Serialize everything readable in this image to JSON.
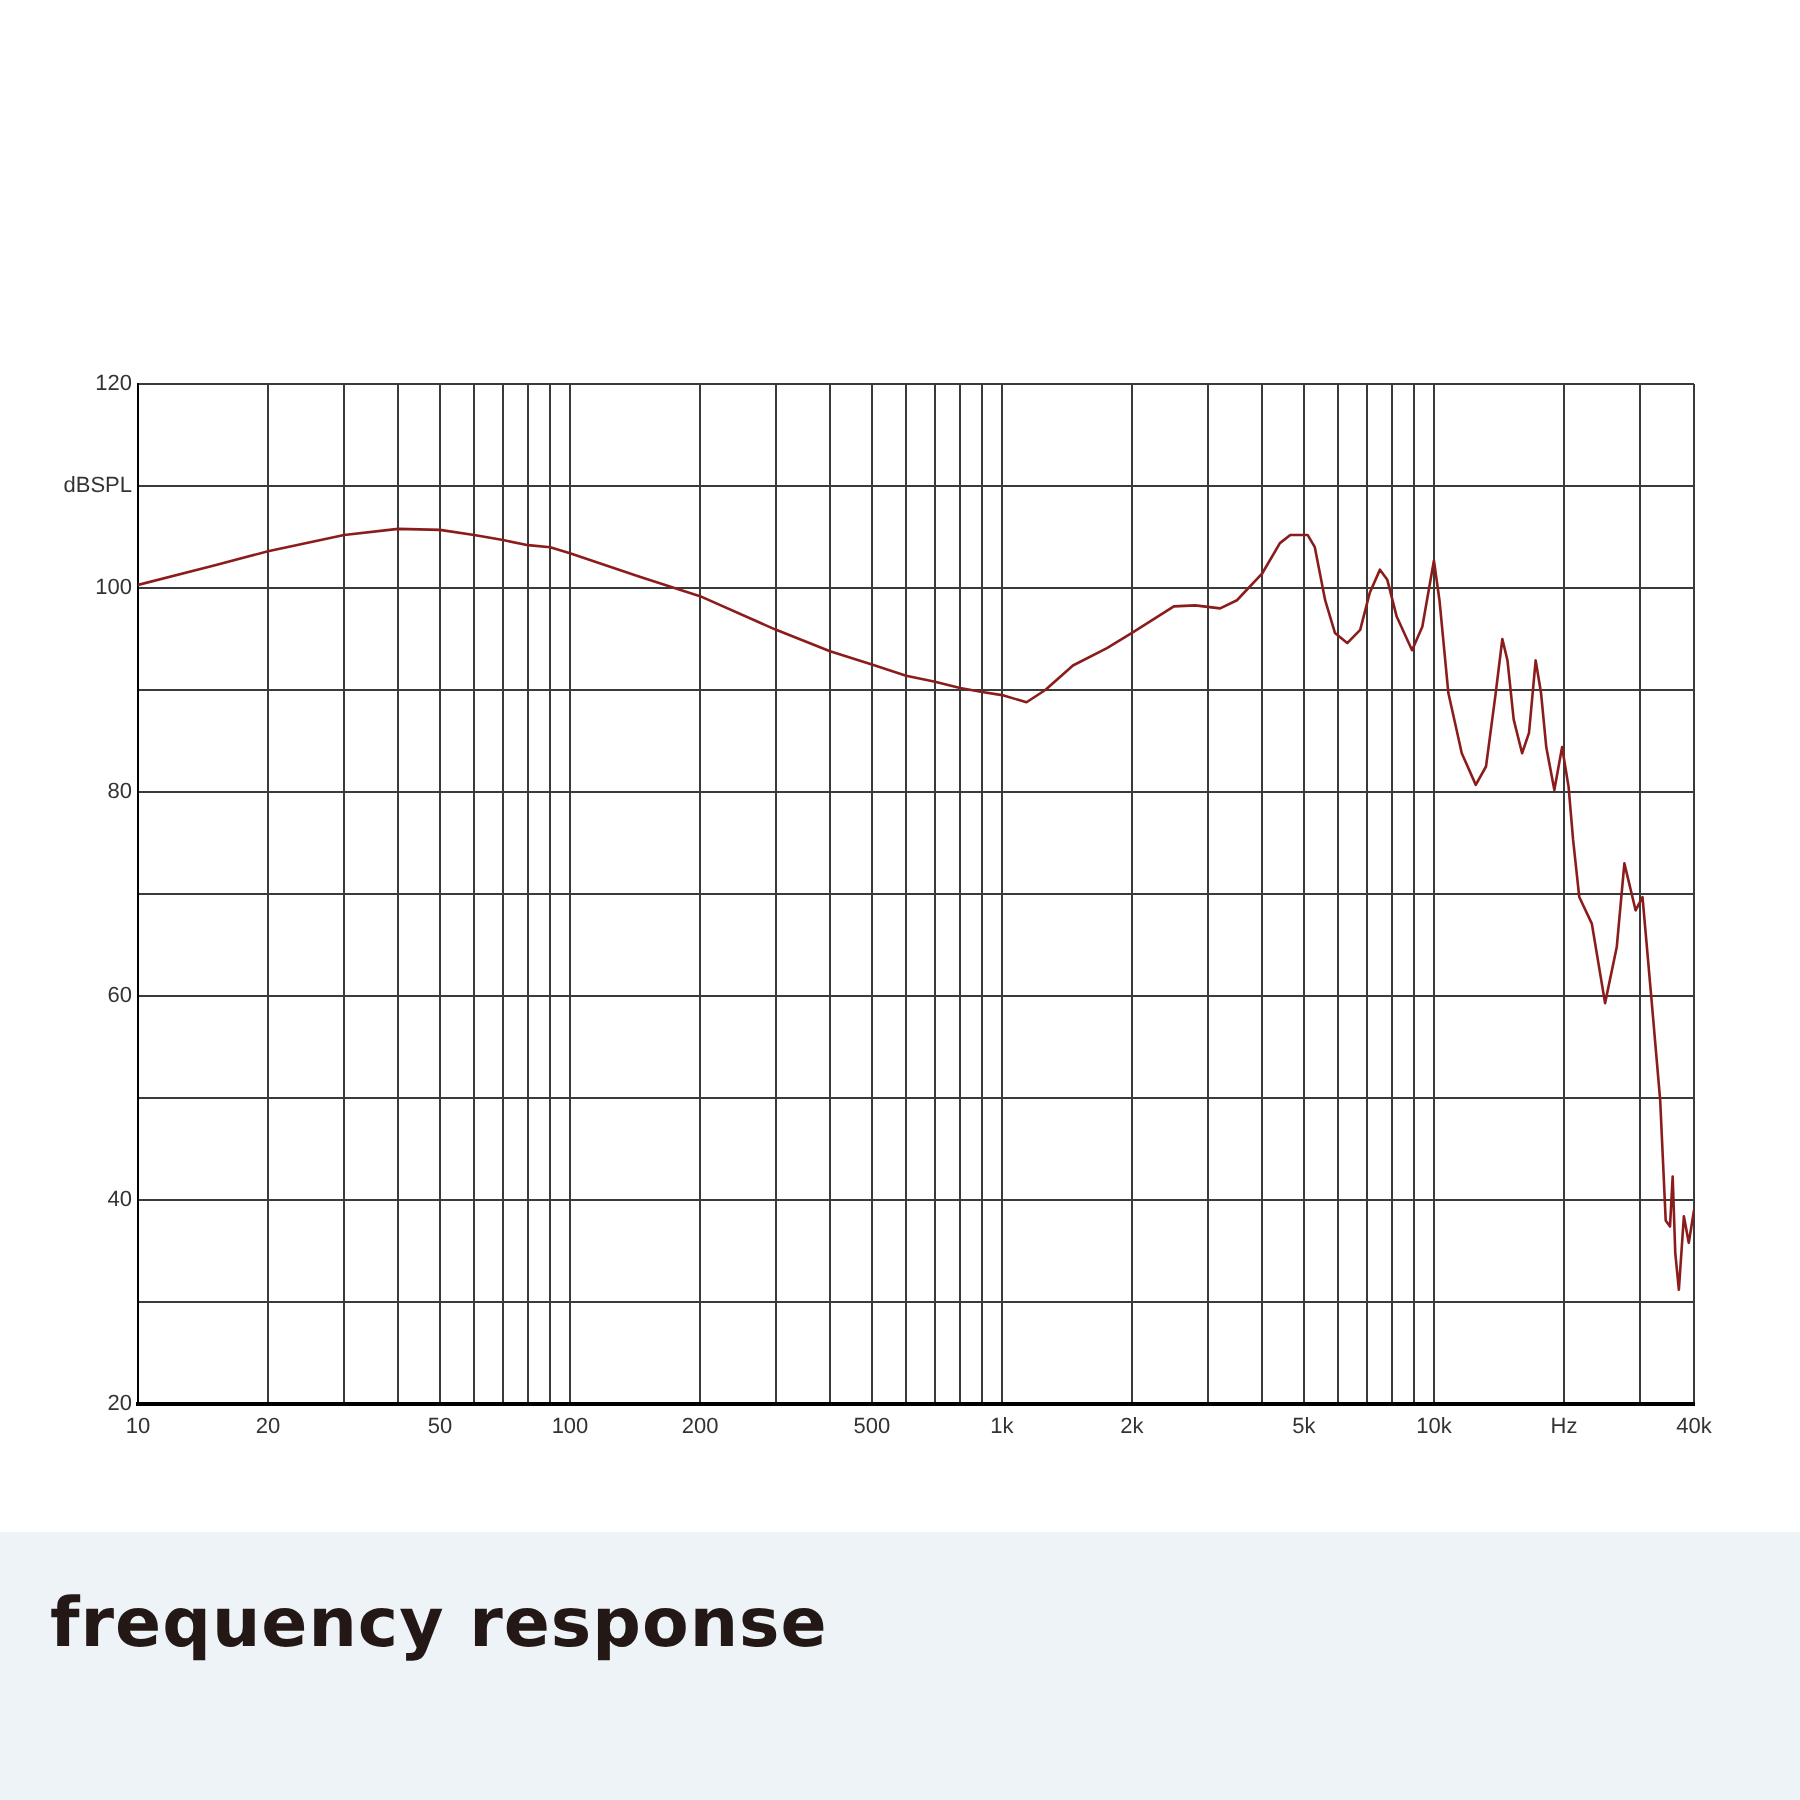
{
  "chart_data": {
    "type": "line",
    "title": "frequency response",
    "log": "x",
    "grid": true,
    "marker": "none",
    "line_style": "solid",
    "xlim": [
      10,
      40000
    ],
    "xticks": [
      10,
      20,
      {
        "value": 30,
        "label": null
      },
      {
        "value": 40,
        "label": null
      },
      50,
      {
        "value": 60,
        "label": null
      },
      {
        "value": 70,
        "label": null
      },
      {
        "value": 80,
        "label": null
      },
      {
        "value": 90,
        "label": null
      },
      100,
      200,
      {
        "value": 300,
        "label": null
      },
      {
        "value": 400,
        "label": null
      },
      500,
      {
        "value": 600,
        "label": null
      },
      {
        "value": 700,
        "label": null
      },
      {
        "value": 800,
        "label": null
      },
      {
        "value": 900,
        "label": null
      },
      {
        "value": 1000,
        "label": "1k"
      },
      {
        "value": 2000,
        "label": "2k"
      },
      {
        "value": 3000,
        "label": null
      },
      {
        "value": 4000,
        "label": null
      },
      {
        "value": 5000,
        "label": "5k"
      },
      {
        "value": 6000,
        "label": null
      },
      {
        "value": 7000,
        "label": null
      },
      {
        "value": 8000,
        "label": null
      },
      {
        "value": 9000,
        "label": null
      },
      {
        "value": 10000,
        "label": "10k"
      },
      {
        "value": 20000,
        "label": "Hz"
      },
      {
        "value": 30000,
        "label": null
      },
      {
        "value": 40000,
        "label": "40k"
      }
    ],
    "ylim": [
      20,
      120
    ],
    "yticks": [
      20,
      {
        "value": 30,
        "label": null
      },
      40,
      {
        "value": 50,
        "label": null
      },
      60,
      {
        "value": 70,
        "label": null
      },
      80,
      {
        "value": 90,
        "label": null
      },
      100,
      {
        "value": 110,
        "label": "dBSPL"
      },
      120
    ],
    "series": [
      {
        "color": "#8b1c1c",
        "x": [
          10,
          15,
          20,
          30,
          40,
          50,
          60,
          70,
          80,
          90,
          100,
          145,
          200,
          300,
          400,
          500,
          600,
          700,
          800,
          900,
          1000,
          1140,
          1260,
          1460,
          1750,
          2000,
          2500,
          2800,
          3200,
          3500,
          4000,
          4400,
          4650,
          5100,
          5300,
          5600,
          5900,
          6300,
          6750,
          7100,
          7500,
          7800,
          8200,
          8900,
          9400,
          10000,
          10300,
          10800,
          11600,
          12500,
          13200,
          13900,
          14400,
          14800,
          15300,
          16000,
          16600,
          17200,
          17700,
          18200,
          19000,
          19800,
          20500,
          21000,
          21700,
          23200,
          24900,
          26500,
          27600,
          29300,
          30400,
          31900,
          33400,
          34400,
          35200,
          35700,
          36200,
          36900,
          37900,
          38900,
          40000
        ],
        "values": [
          100.3,
          102.2,
          103.6,
          105.2,
          105.8,
          105.7,
          105.2,
          104.7,
          104.2,
          104.0,
          103.4,
          101.1,
          99.2,
          95.9,
          93.8,
          92.5,
          91.4,
          90.8,
          90.2,
          89.8,
          89.5,
          88.8,
          90.0,
          92.4,
          94.1,
          95.6,
          98.2,
          98.3,
          98.0,
          98.8,
          101.4,
          104.4,
          105.2,
          105.2,
          104.0,
          98.8,
          95.6,
          94.6,
          95.9,
          99.5,
          101.8,
          100.8,
          97.2,
          93.9,
          96.2,
          102.7,
          98.8,
          89.7,
          83.8,
          80.7,
          82.5,
          89.7,
          95.0,
          92.9,
          87.1,
          83.8,
          85.8,
          92.9,
          89.7,
          84.4,
          80.2,
          84.4,
          80.5,
          75.3,
          69.7,
          67.1,
          59.3,
          64.8,
          73.0,
          68.4,
          69.7,
          59.6,
          49.8,
          38.0,
          37.4,
          42.3,
          34.8,
          31.2,
          38.4,
          35.8,
          39.0
        ]
      }
    ]
  }
}
